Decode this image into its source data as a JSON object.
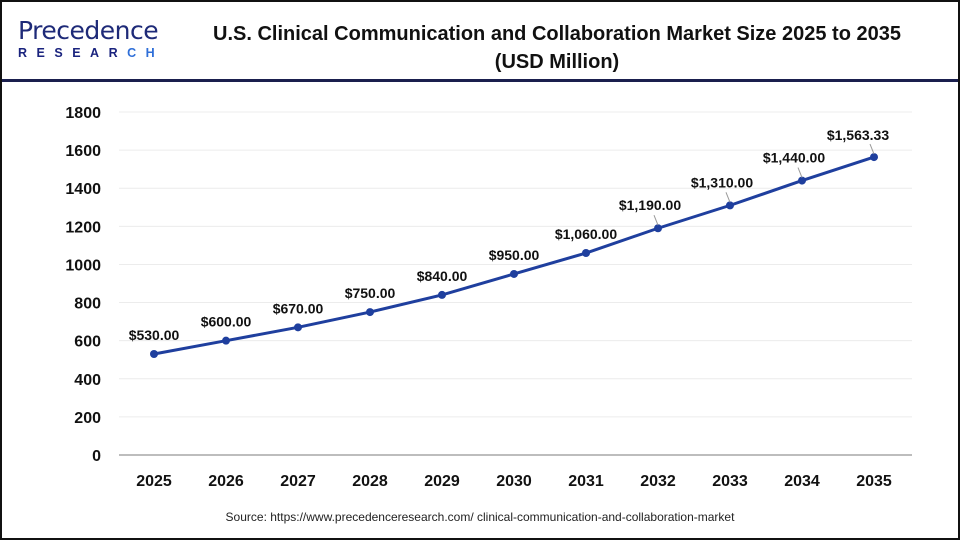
{
  "logo": {
    "main": "Precedence",
    "sub": "RESEARCH"
  },
  "title_line1": "U.S. Clinical Communication and Collaboration Market Size 2025 to 2035",
  "title_line2": "(USD Million)",
  "source": "Source: https://www.precedenceresearch.com/ clinical-communication-and-collaboration-market",
  "colors": {
    "line": "#1f3f9e",
    "header_rule": "#1a1f4e"
  },
  "chart_data": {
    "type": "line",
    "title": "U.S. Clinical Communication and Collaboration Market Size 2025 to 2035 (USD Million)",
    "categories": [
      "2025",
      "2026",
      "2027",
      "2028",
      "2029",
      "2030",
      "2031",
      "2032",
      "2033",
      "2034",
      "2035"
    ],
    "values": [
      530,
      600,
      670,
      750,
      840,
      950,
      1060,
      1190,
      1310,
      1440,
      1563.33
    ],
    "data_labels": [
      "$530.00",
      "$600.00",
      "$670.00",
      "$750.00",
      "$840.00",
      "$950.00",
      "$1,060.00",
      "$1,190.00",
      "$1,310.00",
      "$1,440.00",
      "$1,563.33"
    ],
    "yticks": [
      0,
      200,
      400,
      600,
      800,
      1000,
      1200,
      1400,
      1600,
      1800
    ],
    "ylim": [
      0,
      1800
    ],
    "grid": true,
    "legend": "none"
  }
}
